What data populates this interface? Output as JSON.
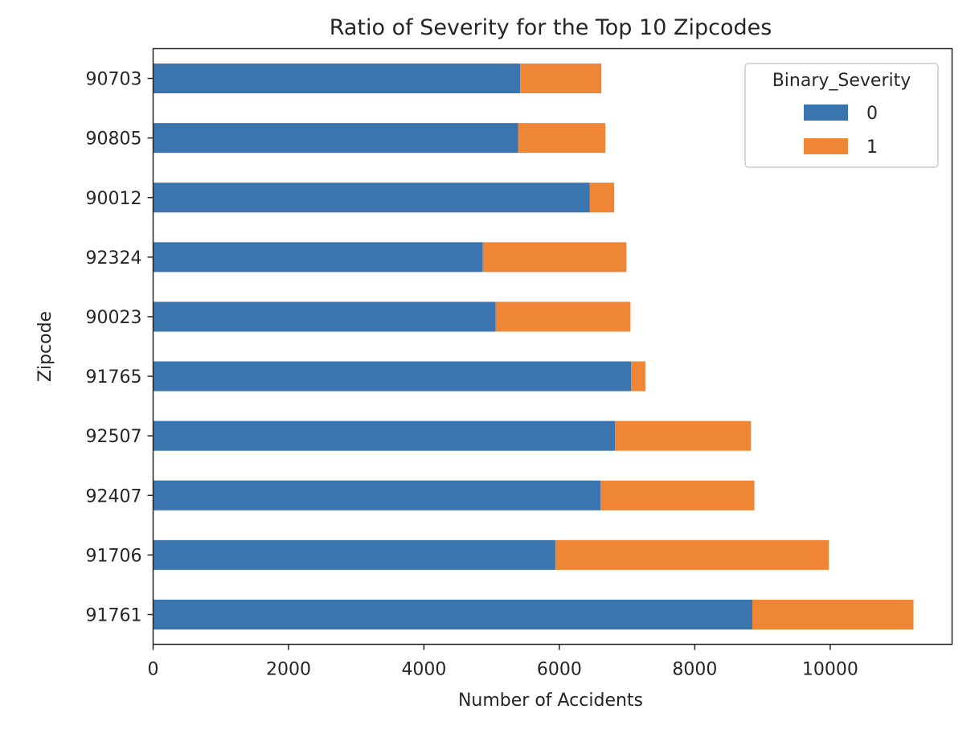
{
  "chart_data": {
    "type": "bar",
    "orientation": "horizontal",
    "stacked": true,
    "title": "Ratio of Severity for the Top 10 Zipcodes",
    "xlabel": "Number of Accidents",
    "ylabel": "Zipcode",
    "categories": [
      "91761",
      "91706",
      "92407",
      "92507",
      "91765",
      "90023",
      "92324",
      "90012",
      "90805",
      "90703"
    ],
    "series": [
      {
        "name": "0",
        "color": "#3a75af",
        "values": [
          8850,
          5940,
          6610,
          6820,
          7060,
          5060,
          4870,
          6450,
          5390,
          5420
        ]
      },
      {
        "name": "1",
        "color": "#ef8636",
        "values": [
          2380,
          4040,
          2270,
          2010,
          210,
          1990,
          2120,
          360,
          1290,
          1200
        ]
      }
    ],
    "xlim": [
      0,
      11800
    ],
    "xticks": [
      "0",
      "2000",
      "4000",
      "6000",
      "8000",
      "10000"
    ],
    "grid": false,
    "legend": {
      "title": "Binary_Severity",
      "placement": "top-right"
    }
  }
}
